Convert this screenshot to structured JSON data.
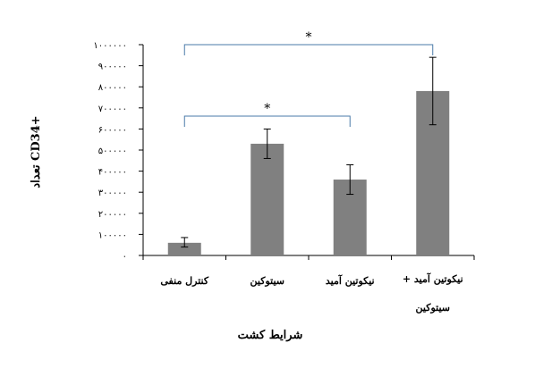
{
  "chart_data": {
    "type": "bar",
    "categories": [
      "کنترل منفی",
      "سیتوکین",
      "نیکوتین آمید",
      "نیکوتین آمید + سیتوکین"
    ],
    "values": [
      60000,
      530000,
      360000,
      780000
    ],
    "error_low": [
      40000,
      460000,
      290000,
      620000
    ],
    "error_high": [
      85000,
      600000,
      430000,
      940000
    ],
    "ylim": [
      0,
      1000000
    ],
    "yticks": [
      0,
      100000,
      200000,
      300000,
      400000,
      500000,
      600000,
      700000,
      800000,
      900000,
      1000000
    ],
    "ytick_labels": [
      "۰",
      "۱۰۰۰۰۰",
      "۲۰۰۰۰۰",
      "۳۰۰۰۰۰",
      "۴۰۰۰۰۰",
      "۵۰۰۰۰۰",
      "۶۰۰۰۰۰",
      "۷۰۰۰۰۰",
      "۸۰۰۰۰۰",
      "۹۰۰۰۰۰",
      "۱۰۰۰۰۰۰"
    ],
    "xlabel": "شرایط کشت",
    "ylabel": "تعداد CD34+",
    "grid": false,
    "legend": "none",
    "bar_color": "#808080",
    "bracket_color": "#4a7aa8",
    "significance": [
      {
        "from": 0,
        "to": 3,
        "label": "*"
      },
      {
        "from": 0,
        "to": 2,
        "label": "*"
      }
    ]
  }
}
